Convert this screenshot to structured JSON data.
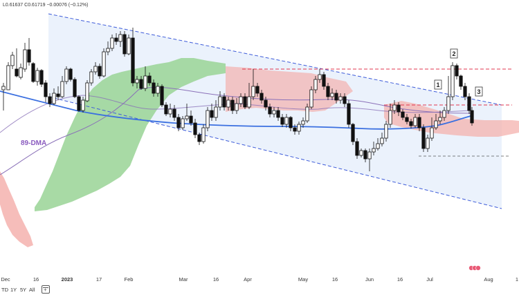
{
  "header": {
    "open_low_text": "L0.61637",
    "close_text": "C0.61719",
    "change_text": "−0.00076 (−0.12%)"
  },
  "range_buttons": [
    "TD",
    "1Y",
    "5Y",
    "All"
  ],
  "chart_data": {
    "type": "candlestick",
    "title": "",
    "x_tick_labels": [
      "Dec",
      "16",
      "2023",
      "17",
      "Feb",
      "Mar",
      "16",
      "Apr",
      "May",
      "16",
      "Jun",
      "16",
      "Jul",
      "Aug",
      "1"
    ],
    "annotations": {
      "dma_label": "89-DMA",
      "waves": [
        "1",
        "2",
        "3"
      ]
    },
    "colors": {
      "channel": "#3d5bd9",
      "resistance": "#e0344d",
      "support": "#555555",
      "dma": "#3a6fe0",
      "slow_ma": "#8a70b8",
      "cloud_bull": "#9ed69b",
      "cloud_bear": "#f4b1ae",
      "candle": "#111111"
    }
  }
}
